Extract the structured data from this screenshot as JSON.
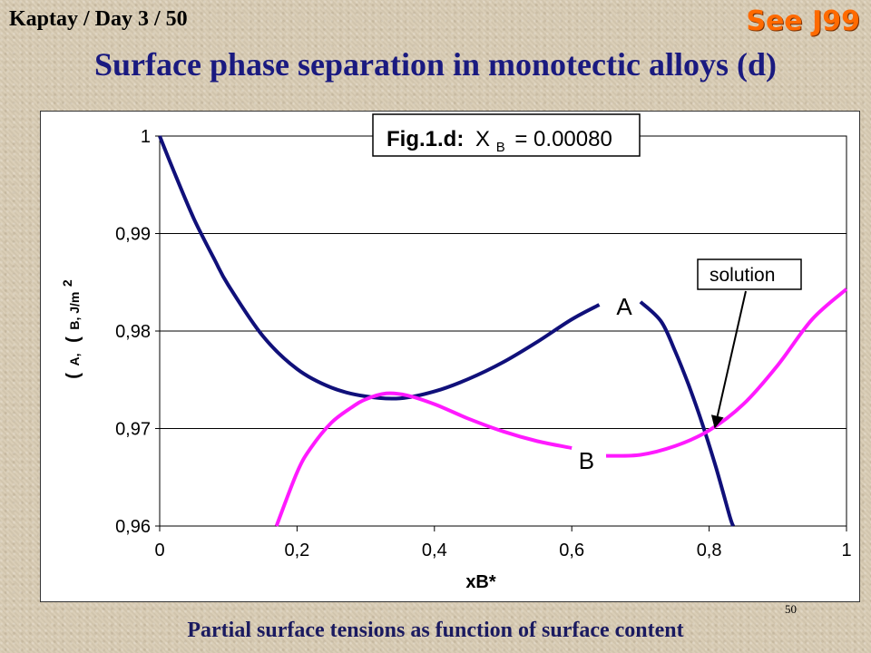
{
  "header": {
    "left": "Kaptay / Day 3 / 50",
    "right": "See J99"
  },
  "title": "Surface phase separation in monotectic alloys (d)",
  "caption": "Partial surface tensions as function of surface content",
  "page_number": "50",
  "colors": {
    "series_A": "#10107a",
    "series_B": "#ff1aff",
    "title": "#1a1a80",
    "see_link": "#ff6a00"
  },
  "chart_data": {
    "type": "line",
    "figure_label": {
      "prefix": "Fig.1.d:",
      "symbol": "X",
      "subscript": "B",
      "value": "= 0.00080"
    },
    "xlabel": "xB*",
    "ylabel": {
      "symbol_a": "(",
      "a": "A,",
      "symbol_b": "(",
      "b": "B, J/m",
      "sup": "2"
    },
    "xlim": [
      0,
      1
    ],
    "ylim": [
      0.96,
      1
    ],
    "xticks": [
      "0",
      "0,2",
      "0,4",
      "0,6",
      "0,8",
      "1"
    ],
    "yticks": [
      "0,96",
      "0,97",
      "0,98",
      "0,99",
      "1"
    ],
    "grid": "horizontal",
    "series": [
      {
        "name": "A",
        "color": "#10107a",
        "x": [
          0.0,
          0.02,
          0.05,
          0.08,
          0.1,
          0.15,
          0.2,
          0.25,
          0.3,
          0.35,
          0.4,
          0.45,
          0.5,
          0.55,
          0.6,
          0.64
        ],
        "y": [
          1.0,
          0.9965,
          0.9915,
          0.9873,
          0.9847,
          0.9795,
          0.9761,
          0.9742,
          0.9733,
          0.9731,
          0.9738,
          0.9751,
          0.9768,
          0.9789,
          0.9812,
          0.9827
        ]
      },
      {
        "name": "A",
        "color": "#10107a",
        "x": [
          0.7,
          0.73,
          0.75,
          0.77,
          0.79,
          0.81,
          0.83,
          0.835
        ],
        "y": [
          0.983,
          0.981,
          0.978,
          0.9745,
          0.9705,
          0.966,
          0.961,
          0.96
        ]
      },
      {
        "name": "B",
        "color": "#ff1aff",
        "x": [
          0.17,
          0.2,
          0.22,
          0.25,
          0.28,
          0.3,
          0.33,
          0.36,
          0.4,
          0.45,
          0.5,
          0.55,
          0.6
        ],
        "y": [
          0.96,
          0.9655,
          0.968,
          0.9706,
          0.9722,
          0.973,
          0.9736,
          0.9734,
          0.9725,
          0.971,
          0.9697,
          0.9687,
          0.968
        ]
      },
      {
        "name": "B",
        "color": "#ff1aff",
        "x": [
          0.65,
          0.7,
          0.75,
          0.8,
          0.85,
          0.9,
          0.95,
          1.0
        ],
        "y": [
          0.9672,
          0.9673,
          0.9682,
          0.9698,
          0.9725,
          0.9765,
          0.9812,
          0.9843
        ]
      }
    ],
    "annotations": [
      {
        "text": "A",
        "x": 0.665,
        "y": 0.9826
      },
      {
        "text": "B",
        "x": 0.61,
        "y": 0.9668
      },
      {
        "text": "solution",
        "points_to": {
          "x": 0.808,
          "y": 0.97
        }
      }
    ]
  }
}
